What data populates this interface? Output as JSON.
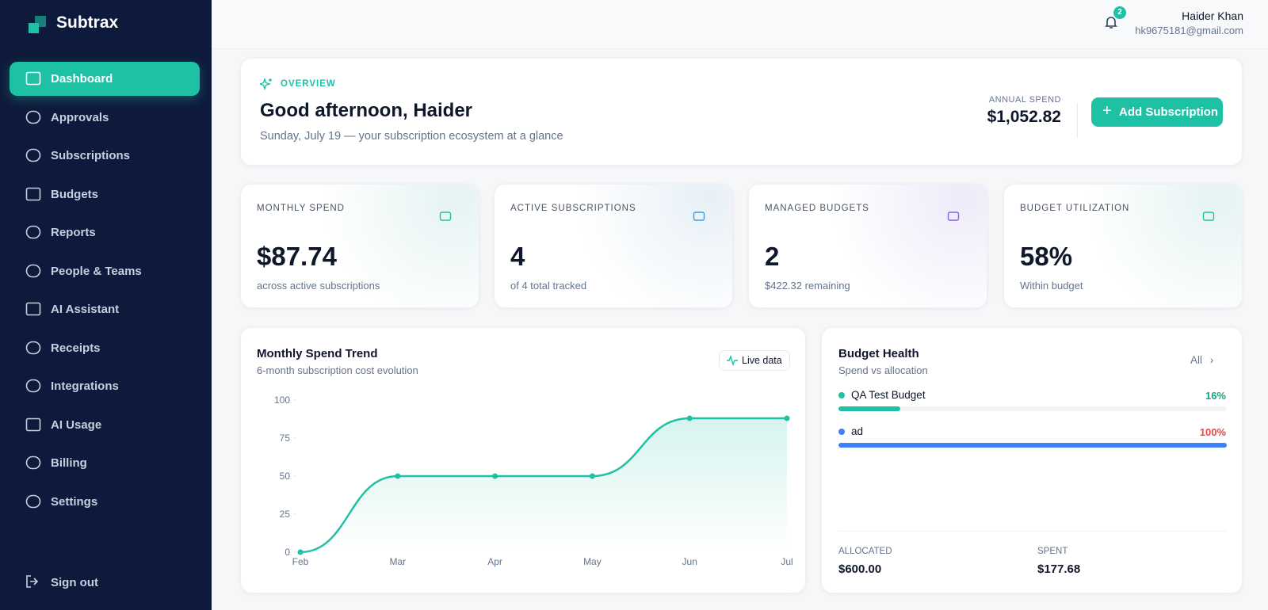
{
  "sidebar": {
    "brand": "Subtrax",
    "nav": [
      "Dashboard",
      "Approvals",
      "Subscriptions",
      "Budgets",
      "Reports",
      "People & Teams",
      "AI Assistant",
      "Receipts",
      "Integrations",
      "AI Usage",
      "Billing",
      "Settings"
    ],
    "sign_out": "Sign out"
  },
  "header": {
    "notifications": "2",
    "user_name": "Haider Khan",
    "user_email": "hk9675181@gmail.com"
  },
  "overview": {
    "eyebrow": "OVERVIEW",
    "greeting": "Good afternoon, Haider",
    "subtitle": "Sunday, July 19 — your subscription ecosystem at a glance",
    "annual_spend_label": "ANNUAL SPEND",
    "annual_spend": "$1,052.82",
    "button": "Add Subscription"
  },
  "stats": [
    {
      "label": "MONTHLY SPEND",
      "value": "$87.74",
      "note": "across active subscriptions"
    },
    {
      "label": "ACTIVE SUBSCRIPTIONS",
      "value": "4",
      "note": "of 4 total tracked"
    },
    {
      "label": "MANAGED BUDGETS",
      "value": "2",
      "note": "$422.32 remaining"
    },
    {
      "label": "BUDGET UTILIZATION",
      "value": "58%",
      "note": "Within budget"
    }
  ],
  "chart_data": {
    "type": "line",
    "title": "Monthly Spend Trend",
    "subtitle": "6-month subscription cost evolution",
    "categories": [
      "Feb",
      "Mar",
      "Apr",
      "May",
      "Jun",
      "Jul"
    ],
    "values": [
      0,
      50,
      50,
      50,
      88,
      88
    ],
    "ylim": [
      0,
      100
    ],
    "yticks": [
      0,
      25,
      50,
      75,
      100
    ],
    "color": "#1fc1a4"
  },
  "live_badge": "Live data",
  "budget_health": {
    "title": "Budget Health",
    "subtitle": "Spend vs allocation",
    "link": "All",
    "items": [
      {
        "name": "QA Test Budget",
        "percent": 16,
        "percent_label": "16%",
        "color": "#1fc1a4",
        "label_color": "#16a67f"
      },
      {
        "name": "ad",
        "percent": 100,
        "percent_label": "100%",
        "color": "#3b82f6",
        "label_color": "#ef4444"
      }
    ],
    "allocated_label": "ALLOCATED",
    "allocated": "$600.00",
    "spent_label": "SPENT",
    "spent": "$177.68"
  }
}
